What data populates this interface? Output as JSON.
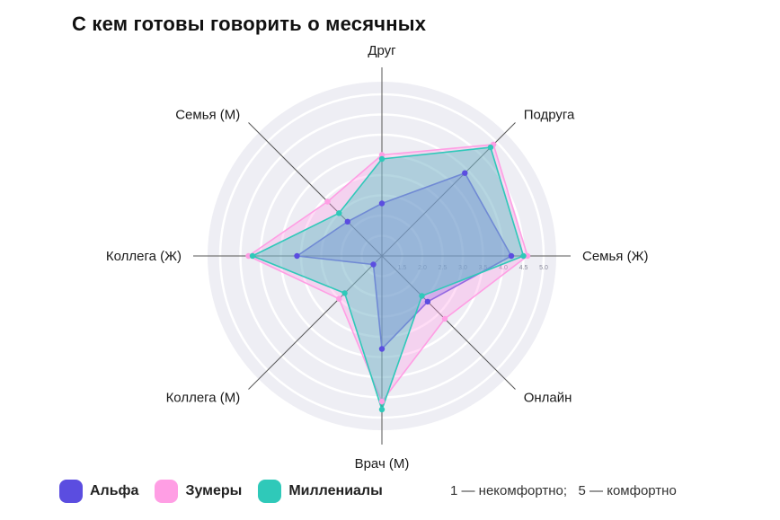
{
  "chart_data": {
    "type": "radar",
    "title": "С кем готовы говорить о месячных",
    "axes": [
      "Друг",
      "Подруга",
      "Семья (Ж)",
      "Онлайн",
      "Врач (М)",
      "Коллега (М)",
      "Коллега (Ж)",
      "Семья (М)"
    ],
    "rlim": [
      1,
      5
    ],
    "tick_values": [
      1.5,
      2.0,
      2.5,
      3.0,
      3.5,
      4.0,
      4.5,
      5.0
    ],
    "tick_labels": [
      "1.5",
      "2.0",
      "2.5",
      "3.0",
      "3.5",
      "4.0",
      "4.5",
      "5.0"
    ],
    "grid": true,
    "legend_position": "bottom-left",
    "series": [
      {
        "name": "Альфа",
        "color": "#5b4de0",
        "values": [
          2.3,
          3.9,
          4.2,
          2.6,
          3.3,
          1.3,
          3.1,
          2.2
        ]
      },
      {
        "name": "Зумеры",
        "color": "#ff9ee4",
        "values": [
          3.5,
          4.9,
          4.6,
          3.2,
          4.6,
          2.5,
          4.3,
          2.9
        ]
      },
      {
        "name": "Миллениалы",
        "color": "#2fc9b9",
        "values": [
          3.4,
          4.8,
          4.5,
          2.4,
          4.8,
          2.3,
          4.2,
          2.5
        ]
      }
    ]
  },
  "note": "1 — некомфортно;   5 — комфортно"
}
